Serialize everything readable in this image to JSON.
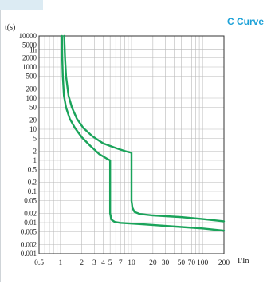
{
  "chart_data": {
    "type": "line",
    "title": "C Curve",
    "ylabel": "t(s)",
    "xlabel": "I/In",
    "xscale": "log",
    "yscale": "log",
    "xlim": [
      0.5,
      200
    ],
    "ylim": [
      0.001,
      10000
    ],
    "grid": true,
    "x_ticks": [
      {
        "value": 0.5,
        "label": "0.5"
      },
      {
        "value": 1,
        "label": "1"
      },
      {
        "value": 2,
        "label": "2"
      },
      {
        "value": 3,
        "label": "3"
      },
      {
        "value": 4,
        "label": "4"
      },
      {
        "value": 5,
        "label": "5"
      },
      {
        "value": 7,
        "label": "7"
      },
      {
        "value": 10,
        "label": "10"
      },
      {
        "value": 20,
        "label": "20"
      },
      {
        "value": 30,
        "label": "30"
      },
      {
        "value": 50,
        "label": "50"
      },
      {
        "value": 70,
        "label": "70"
      },
      {
        "value": 100,
        "label": "100"
      },
      {
        "value": 200,
        "label": "200"
      }
    ],
    "y_ticks": [
      {
        "value": 10000,
        "label": "10000"
      },
      {
        "value": 5000,
        "label": "5000"
      },
      {
        "value": 3600,
        "label": "1h"
      },
      {
        "value": 2000,
        "label": "2000"
      },
      {
        "value": 1000,
        "label": "1000"
      },
      {
        "value": 500,
        "label": "500"
      },
      {
        "value": 200,
        "label": "200"
      },
      {
        "value": 100,
        "label": "100"
      },
      {
        "value": 50,
        "label": "50"
      },
      {
        "value": 20,
        "label": "20"
      },
      {
        "value": 10,
        "label": "10"
      },
      {
        "value": 5,
        "label": "5"
      },
      {
        "value": 2,
        "label": "2"
      },
      {
        "value": 1,
        "label": "1"
      },
      {
        "value": 0.5,
        "label": "0.5"
      },
      {
        "value": 0.2,
        "label": "0.2"
      },
      {
        "value": 0.1,
        "label": "0.1"
      },
      {
        "value": 0.05,
        "label": "0.05"
      },
      {
        "value": 0.02,
        "label": "0.02"
      },
      {
        "value": 0.01,
        "label": "0.01"
      },
      {
        "value": 0.005,
        "label": "0.005"
      },
      {
        "value": 0.002,
        "label": "0.002"
      },
      {
        "value": 0.001,
        "label": "0.001"
      }
    ],
    "x_grid": [
      0.5,
      0.6,
      0.7,
      0.8,
      0.9,
      1,
      2,
      3,
      4,
      5,
      6,
      7,
      8,
      9,
      10,
      20,
      30,
      40,
      50,
      60,
      70,
      80,
      90,
      100,
      200
    ],
    "series": [
      {
        "color": "#1aa35a",
        "points": [
          [
            1.13,
            10000
          ],
          [
            1.16,
            2000
          ],
          [
            1.2,
            500
          ],
          [
            1.3,
            120
          ],
          [
            1.45,
            50
          ],
          [
            1.7,
            22
          ],
          [
            2.1,
            11
          ],
          [
            2.8,
            6
          ],
          [
            4,
            3.5
          ],
          [
            6,
            2.5
          ],
          [
            8,
            2
          ],
          [
            10,
            1.75
          ],
          [
            10,
            0.05
          ],
          [
            10.3,
            0.03
          ],
          [
            11,
            0.022
          ],
          [
            13,
            0.019
          ],
          [
            20,
            0.017
          ],
          [
            50,
            0.015
          ],
          [
            100,
            0.013
          ],
          [
            200,
            0.011
          ]
        ]
      },
      {
        "color": "#1aa35a",
        "points": [
          [
            1.05,
            10000
          ],
          [
            1.06,
            2000
          ],
          [
            1.08,
            500
          ],
          [
            1.12,
            120
          ],
          [
            1.2,
            50
          ],
          [
            1.35,
            22
          ],
          [
            1.6,
            11
          ],
          [
            2,
            5.5
          ],
          [
            2.6,
            3
          ],
          [
            3.5,
            1.6
          ],
          [
            4.6,
            1.1
          ],
          [
            5,
            1
          ],
          [
            5,
            0.02
          ],
          [
            5.2,
            0.0125
          ],
          [
            5.8,
            0.0105
          ],
          [
            7,
            0.0098
          ],
          [
            15,
            0.0088
          ],
          [
            40,
            0.0075
          ],
          [
            100,
            0.0065
          ],
          [
            200,
            0.0055
          ]
        ]
      }
    ]
  }
}
